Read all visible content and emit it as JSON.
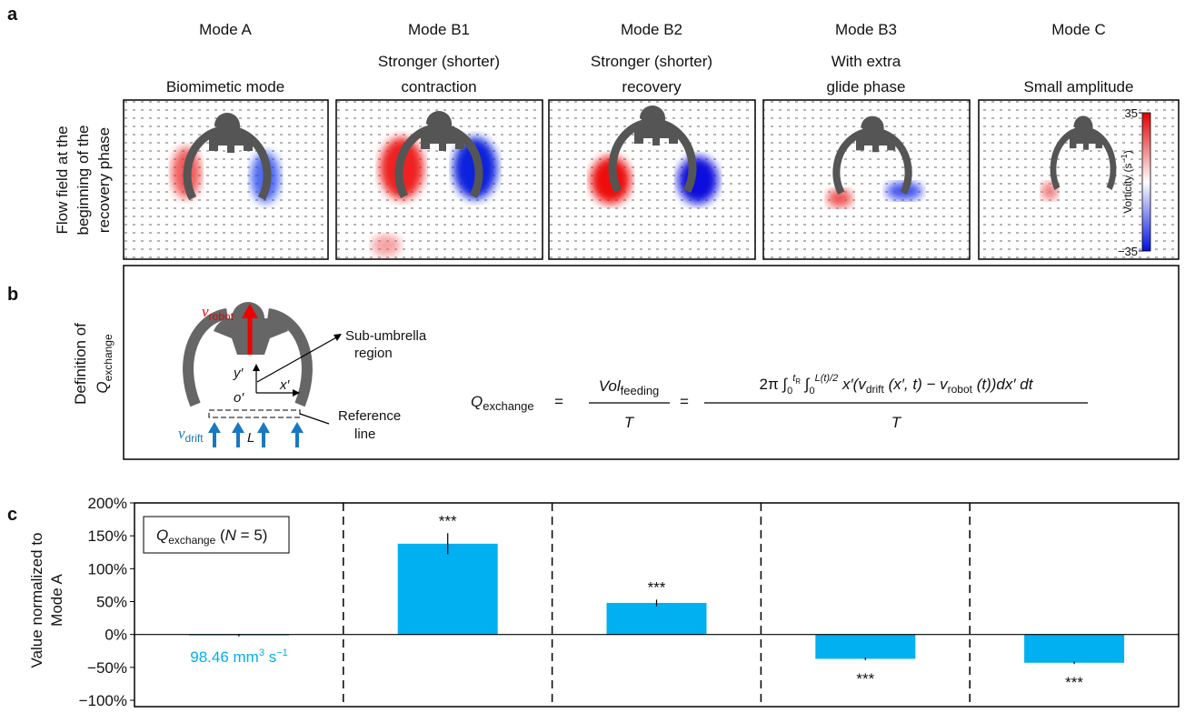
{
  "panel_labels": [
    "a",
    "b",
    "c"
  ],
  "panel_a": {
    "side_label": [
      "Flow field at the",
      "beginning of the",
      "recovery phase"
    ],
    "modes": [
      {
        "name": "Mode A",
        "description": [
          "Biomimetic mode"
        ]
      },
      {
        "name": "Mode B1",
        "description": [
          "Stronger (shorter)",
          "contraction"
        ]
      },
      {
        "name": "Mode B2",
        "description": [
          "Stronger (shorter)",
          "recovery"
        ]
      },
      {
        "name": "Mode B3",
        "description": [
          "With extra",
          "glide phase"
        ]
      },
      {
        "name": "Mode C",
        "description": [
          "Small amplitude"
        ]
      }
    ],
    "colorbar": {
      "ticks": [
        35,
        {
          "value": -35,
          "label": "−35"
        }
      ],
      "label": [
        "Vorticity (s",
        "−1",
        ")"
      ]
    }
  },
  "panel_b": {
    "side_label": [
      "Definition of",
      "Q",
      "exchange"
    ],
    "diagram": {
      "v_robot": [
        "v",
        "robot"
      ],
      "region": [
        "Sub-umbrella",
        "region"
      ],
      "y_axis": "y′",
      "origin": "o′",
      "x_axis": "x′",
      "reference": [
        "Reference",
        "line"
      ],
      "v_drift": [
        "v",
        "drift"
      ],
      "length": "L"
    },
    "equation": {
      "lhs": [
        "Q",
        "exchange"
      ],
      "eq1": "=",
      "frac1_num": [
        "Vol",
        "feeding"
      ],
      "frac1_den": "T",
      "eq2": "=",
      "frac2_num": [
        "2π ∫",
        "0",
        "t",
        "R",
        " ∫",
        "0",
        "L(t)/2",
        " x′(",
        "v",
        "drift",
        " (x′, t) − ",
        "v",
        "robot",
        " (t))dx′ dt"
      ],
      "frac2_den": "T"
    }
  },
  "chart_data": {
    "type": "bar",
    "categories": [
      null,
      null,
      null,
      null,
      null
    ],
    "values": [
      -1,
      138,
      48,
      -37,
      -43
    ],
    "errors": [
      2,
      16,
      5,
      2,
      2
    ],
    "significance": [
      null,
      "***",
      "***",
      "***",
      "***"
    ],
    "color": "#00b0f0",
    "ylim": [
      -100,
      200
    ],
    "yticks": [
      {
        "value": -100,
        "label": "−100%"
      },
      {
        "value": -50,
        "label": "−50%"
      },
      {
        "value": 0,
        "label": "0%"
      },
      {
        "value": 50,
        "label": "50%"
      },
      {
        "value": 100,
        "label": "100%"
      },
      {
        "value": 150,
        "label": "150%"
      },
      {
        "value": 200,
        "label": "200%"
      }
    ],
    "ylabel": [
      "Value normalized to",
      "Mode A"
    ],
    "legend": [
      "Q",
      "exchange",
      " (",
      "N",
      " = 5)"
    ],
    "annotation": [
      "98.46 mm",
      "3",
      " s",
      "−1"
    ]
  }
}
